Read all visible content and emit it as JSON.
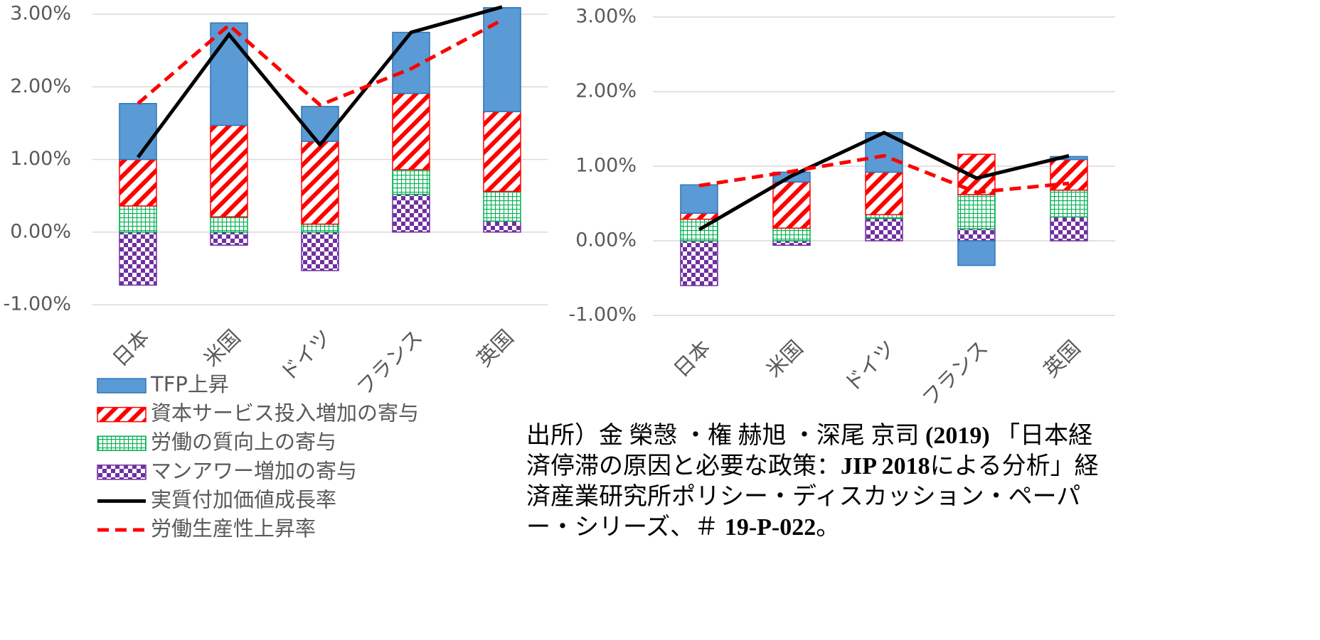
{
  "chart_data": [
    {
      "type": "bar",
      "categories": [
        "日本",
        "米国",
        "ドイツ",
        "フランス",
        "英国"
      ],
      "ylim": [
        -1,
        3
      ],
      "yticks": [
        {
          "value": -1,
          "label": "-1.00%"
        },
        {
          "value": 0,
          "label": "0.00%"
        },
        {
          "value": 1,
          "label": "1.00%"
        },
        {
          "value": 2,
          "label": "2.00%"
        },
        {
          "value": 3,
          "label": "3.00%"
        }
      ],
      "grid": true,
      "series": [
        {
          "name": "TFP上昇",
          "type": "bar",
          "pattern": "solid",
          "color": "#5b9bd5",
          "values": [
            0.77,
            1.41,
            0.48,
            0.84,
            1.43
          ]
        },
        {
          "name": "資本サービス投入増加の寄与",
          "type": "bar",
          "pattern": "diagonal",
          "color": "#ff0000",
          "values": [
            0.64,
            1.26,
            1.14,
            1.05,
            1.1
          ]
        },
        {
          "name": "労働の質向上の寄与",
          "type": "bar",
          "pattern": "grid",
          "color": "#00b050",
          "values": [
            0.36,
            0.21,
            0.11,
            0.34,
            0.41
          ]
        },
        {
          "name": "マンアワー増加の寄与",
          "type": "bar",
          "pattern": "checker",
          "color": "#7030a0",
          "values": [
            -0.73,
            -0.18,
            -0.53,
            0.52,
            0.15
          ]
        },
        {
          "name": "実質付加価値成長率",
          "type": "line",
          "dash": false,
          "color": "#000000",
          "values": [
            1.03,
            2.72,
            1.2,
            2.75,
            3.1
          ]
        },
        {
          "name": "労働生産性上昇率",
          "type": "line",
          "dash": true,
          "color": "#ff0000",
          "values": [
            1.77,
            2.85,
            1.75,
            2.25,
            2.92
          ]
        }
      ]
    },
    {
      "type": "bar",
      "categories": [
        "日本",
        "米国",
        "ドイツ",
        "フランス",
        "英国"
      ],
      "ylim": [
        -1,
        3
      ],
      "yticks": [
        {
          "value": -1,
          "label": "-1.00%"
        },
        {
          "value": 0,
          "label": "0.00%"
        },
        {
          "value": 1,
          "label": "1.00%"
        },
        {
          "value": 2,
          "label": "2.00%"
        },
        {
          "value": 3,
          "label": "3.00%"
        }
      ],
      "grid": true,
      "series": [
        {
          "type": "bar",
          "pattern": "solid",
          "color": "#5b9bd5",
          "values": [
            0.38,
            0.13,
            0.53,
            -0.33,
            0.04
          ]
        },
        {
          "type": "bar",
          "pattern": "diagonal",
          "color": "#ff0000",
          "values": [
            0.08,
            0.62,
            0.57,
            0.54,
            0.41
          ]
        },
        {
          "type": "bar",
          "pattern": "grid",
          "color": "#00b050",
          "values": [
            0.29,
            0.17,
            0.05,
            0.46,
            0.36
          ]
        },
        {
          "type": "bar",
          "pattern": "checker",
          "color": "#7030a0",
          "values": [
            -0.6,
            -0.06,
            0.3,
            0.16,
            0.32
          ]
        },
        {
          "type": "line",
          "dash": false,
          "color": "#000000",
          "values": [
            0.15,
            0.87,
            1.45,
            0.84,
            1.14
          ]
        },
        {
          "type": "line",
          "dash": true,
          "color": "#ff0000",
          "values": [
            0.74,
            0.93,
            1.14,
            0.65,
            0.77
          ]
        }
      ]
    }
  ],
  "source": [
    "出所）金 榮愨 ・権 赫旭 ・深尾 京司 ",
    "(2019)",
    " 「日本経済停滞の原因と必要な政策：",
    "JIP 2018",
    "による分析」経済産業研究所ポリシー・ディスカッション・ペーパー・シリーズ、＃ ",
    "19-P-022",
    "。"
  ]
}
